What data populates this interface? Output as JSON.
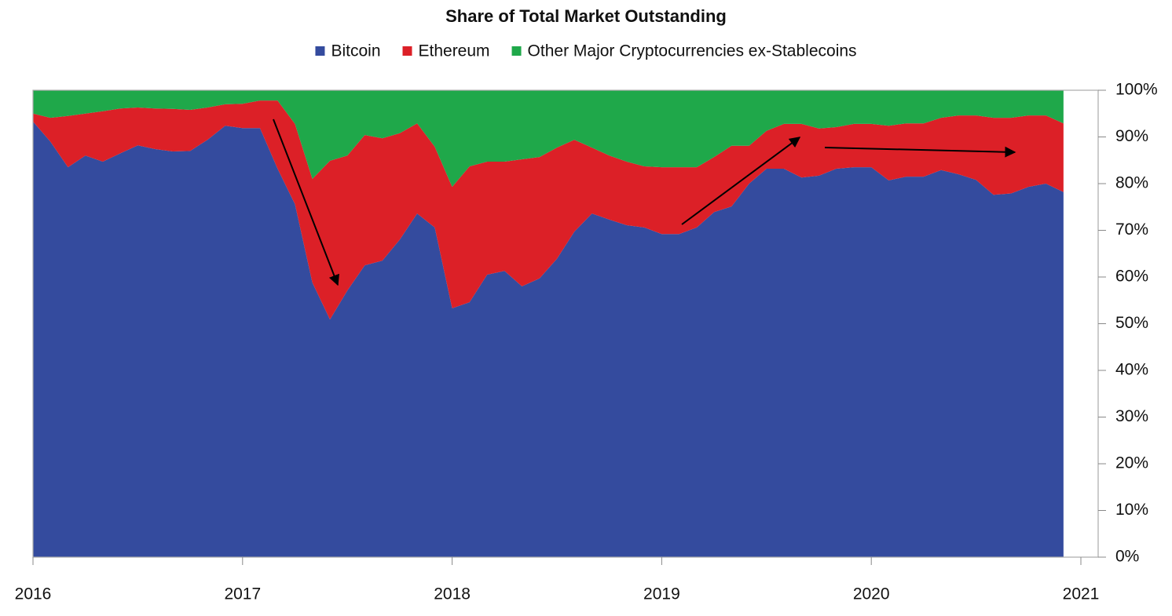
{
  "chart_data": {
    "type": "stacked-area",
    "title": "Share of Total Market Outstanding",
    "x": [
      2016,
      2016.083,
      2016.167,
      2016.25,
      2016.333,
      2016.417,
      2016.5,
      2016.583,
      2016.667,
      2016.75,
      2016.833,
      2016.917,
      2017,
      2017.083,
      2017.167,
      2017.25,
      2017.333,
      2017.417,
      2017.5,
      2017.583,
      2017.667,
      2017.75,
      2017.833,
      2017.917,
      2018,
      2018.083,
      2018.167,
      2018.25,
      2018.333,
      2018.417,
      2018.5,
      2018.583,
      2018.667,
      2018.75,
      2018.833,
      2018.917,
      2019,
      2019.083,
      2019.167,
      2019.25,
      2019.333,
      2019.417,
      2019.5,
      2019.583,
      2019.667,
      2019.75,
      2019.833,
      2019.917,
      2020,
      2020.083,
      2020.167,
      2020.25,
      2020.333,
      2020.417,
      2020.5,
      2020.583,
      2020.667,
      2020.75,
      2020.833,
      2020.917
    ],
    "series": [
      {
        "name": "Bitcoin",
        "color": "#344b9e",
        "values": [
          93.3,
          89,
          83.5,
          86,
          84.7,
          86.5,
          88.2,
          87.4,
          86.9,
          87,
          89.4,
          92.4,
          91.9,
          91.9,
          83.2,
          75.6,
          58.8,
          50.9,
          57.1,
          62.5,
          63.5,
          68,
          73.6,
          70.6,
          53.3,
          54.6,
          60.5,
          61.3,
          58,
          59.7,
          63.9,
          69.7,
          73.6,
          72.3,
          71.1,
          70.6,
          69.2,
          69.2,
          70.6,
          73.9,
          75.1,
          80,
          83.2,
          83.2,
          81.3,
          81.7,
          83.2,
          83.5,
          83.5,
          80.7,
          81.5,
          81.5,
          82.9,
          82,
          80.8,
          77.6,
          77.9,
          79.3,
          80,
          78.2
        ]
      },
      {
        "name": "Ethereum",
        "color": "#dc2027",
        "values": [
          1.7,
          5.1,
          11,
          9,
          10.8,
          9.6,
          8.1,
          8.7,
          9.1,
          8.8,
          6.9,
          4.6,
          5.2,
          5.9,
          14.6,
          17.2,
          22.2,
          34,
          28.9,
          27.9,
          26.2,
          22.8,
          19.3,
          17.3,
          26,
          29.1,
          24.2,
          23.4,
          27.2,
          26,
          23.8,
          19.7,
          14.1,
          13.7,
          13.6,
          13.1,
          14.3,
          14.3,
          12.9,
          11.8,
          13,
          8.1,
          8.1,
          9.6,
          11.5,
          10.1,
          8.9,
          9.3,
          9.3,
          11.7,
          11.4,
          11.4,
          11.2,
          12.6,
          13.8,
          16.5,
          16.2,
          15.3,
          14.6,
          14.7
        ]
      },
      {
        "name": "Other Major Cryptocurrencies ex-Stablecoins",
        "color": "#1fa84a",
        "values": [
          5,
          5.9,
          5.5,
          5,
          4.5,
          3.9,
          3.7,
          3.9,
          4,
          4.2,
          3.7,
          3,
          2.9,
          2.2,
          2.2,
          7.2,
          19,
          15.1,
          14,
          9.6,
          10.3,
          9.2,
          7.1,
          12.1,
          20.7,
          16.3,
          15.3,
          15.3,
          14.8,
          14.3,
          12.3,
          10.6,
          12.3,
          14,
          15.3,
          16.3,
          16.5,
          16.5,
          16.5,
          14.3,
          11.9,
          11.9,
          8.7,
          7.2,
          7.2,
          8.2,
          7.9,
          7.2,
          7.2,
          7.6,
          7.1,
          7.1,
          5.9,
          5.4,
          5.4,
          5.9,
          5.9,
          5.4,
          5.4,
          7.1
        ]
      }
    ],
    "xlim": [
      2016,
      2021
    ],
    "xticks": [
      2016,
      2017,
      2018,
      2019,
      2020,
      2021
    ],
    "ylim": [
      0,
      100
    ],
    "yticks": [
      {
        "value": 0,
        "label": "0%"
      },
      {
        "value": 10,
        "label": "10%"
      },
      {
        "value": 20,
        "label": "20%"
      },
      {
        "value": 30,
        "label": "30%"
      },
      {
        "value": 40,
        "label": "40%"
      },
      {
        "value": 50,
        "label": "50%"
      },
      {
        "value": 60,
        "label": "60%"
      },
      {
        "value": 70,
        "label": "70%"
      },
      {
        "value": 80,
        "label": "80%"
      },
      {
        "value": 90,
        "label": "90%"
      },
      {
        "value": 100,
        "label": "100%"
      }
    ],
    "legend": "top"
  }
}
